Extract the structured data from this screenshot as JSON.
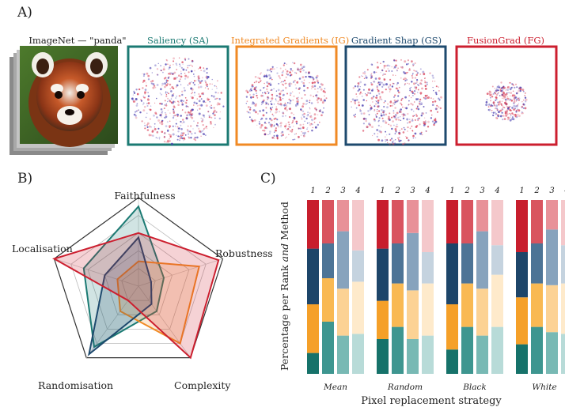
{
  "panel_labels": {
    "a": "A)",
    "b": "B)",
    "c": "C)"
  },
  "image_caption": "ImageNet — \"panda\"",
  "methods": [
    {
      "key": "SA",
      "label": "Saliency (SA)",
      "color": "#1b7a73"
    },
    {
      "key": "IG",
      "label": "Integrated Gradients (IG)",
      "color": "#f08a24"
    },
    {
      "key": "GS",
      "label": "Gradient Shap (GS)",
      "color": "#1e4a6e"
    },
    {
      "key": "FG",
      "label": "FusionGrad (FG)",
      "color": "#cc1f2f"
    }
  ],
  "chart_data": [
    {
      "type": "radar",
      "axes": [
        "Faithfulness",
        "Robustness",
        "Complexity",
        "Randomisation",
        "Localisation"
      ],
      "series": [
        {
          "name": "SA",
          "color": "#1b7a73",
          "values": [
            0.9,
            0.3,
            0.35,
            0.85,
            0.65
          ]
        },
        {
          "name": "IG",
          "color": "#f08a24",
          "values": [
            0.28,
            0.72,
            0.8,
            0.35,
            0.25
          ]
        },
        {
          "name": "GS",
          "color": "#1e4a6e",
          "values": [
            0.55,
            0.15,
            0.25,
            0.95,
            0.4
          ]
        },
        {
          "name": "FG",
          "color": "#cc1f2f",
          "values": [
            0.6,
            0.95,
            1.0,
            0.2,
            1.0
          ]
        }
      ]
    },
    {
      "type": "stacked-bar",
      "ylabel_parts": [
        "Percentage per Rank ",
        "and",
        " Method"
      ],
      "xlabel": "Pixel replacement strategy",
      "groups": [
        "Mean",
        "Random",
        "Black",
        "White"
      ],
      "ranks": [
        "1",
        "2",
        "3",
        "4"
      ],
      "stack_order": [
        "SA",
        "IG",
        "GS",
        "FG"
      ],
      "bars": [
        [
          [
            0.12,
            0.28,
            0.32,
            0.28
          ],
          [
            0.3,
            0.25,
            0.2,
            0.25
          ],
          [
            0.22,
            0.27,
            0.33,
            0.18
          ],
          [
            0.23,
            0.3,
            0.18,
            0.29
          ]
        ],
        [
          [
            0.2,
            0.22,
            0.3,
            0.28
          ],
          [
            0.27,
            0.25,
            0.23,
            0.25
          ],
          [
            0.2,
            0.28,
            0.33,
            0.19
          ],
          [
            0.22,
            0.3,
            0.18,
            0.3
          ]
        ],
        [
          [
            0.14,
            0.26,
            0.35,
            0.25
          ],
          [
            0.27,
            0.25,
            0.23,
            0.25
          ],
          [
            0.22,
            0.27,
            0.33,
            0.18
          ],
          [
            0.27,
            0.3,
            0.17,
            0.26
          ]
        ],
        [
          [
            0.17,
            0.27,
            0.26,
            0.3
          ],
          [
            0.27,
            0.25,
            0.23,
            0.25
          ],
          [
            0.24,
            0.27,
            0.32,
            0.17
          ],
          [
            0.23,
            0.29,
            0.22,
            0.26
          ]
        ]
      ]
    }
  ]
}
